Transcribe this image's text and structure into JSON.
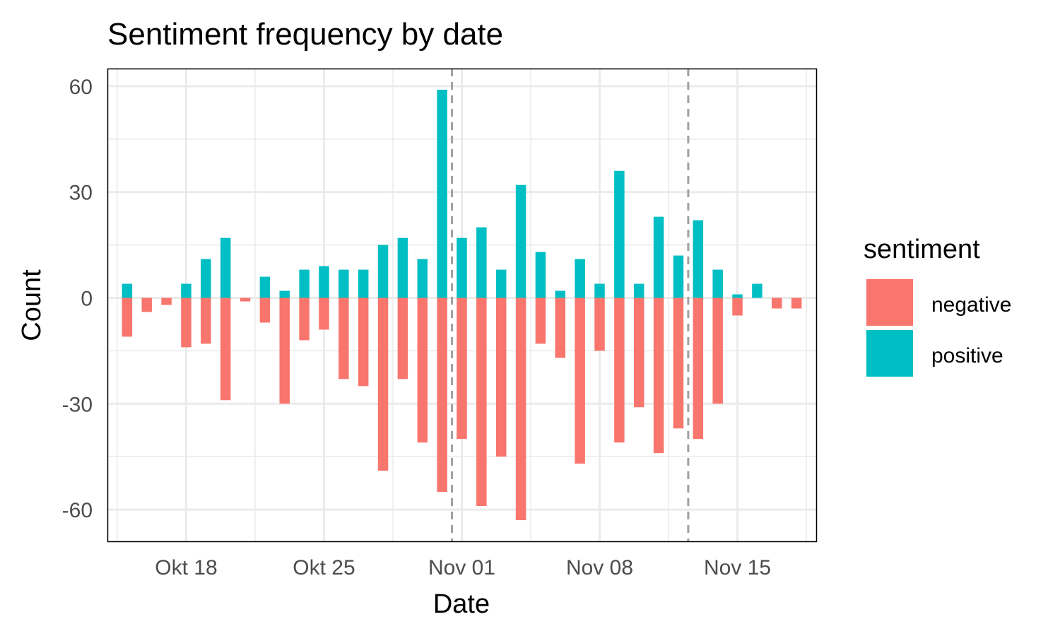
{
  "chart_data": {
    "type": "bar",
    "title": "Sentiment frequency by date",
    "xlabel": "Date",
    "ylabel": "Count",
    "x_ticks": [
      {
        "date": "2020-10-18",
        "label": "Okt 18"
      },
      {
        "date": "2020-10-25",
        "label": "Okt 25"
      },
      {
        "date": "2020-11-01",
        "label": "Nov 01"
      },
      {
        "date": "2020-11-08",
        "label": "Nov 08"
      },
      {
        "date": "2020-11-15",
        "label": "Nov 15"
      }
    ],
    "xlim": [
      "2020-10-14",
      "2020-11-19"
    ],
    "y_ticks": [
      60,
      30,
      0,
      -30,
      -60
    ],
    "ylim": [
      -69,
      65
    ],
    "grid": true,
    "legend": {
      "title": "sentiment",
      "position": "right",
      "entries": [
        {
          "name": "negative",
          "color": "#F8766D"
        },
        {
          "name": "positive",
          "color": "#00BFC4"
        }
      ]
    },
    "vlines": {
      "dates": [
        "2020-10-31T12:00",
        "2020-11-12T12:00"
      ],
      "style": "dashed",
      "color": "#A0A0A0"
    },
    "x": [
      "2020-10-15",
      "2020-10-16",
      "2020-10-17",
      "2020-10-18",
      "2020-10-19",
      "2020-10-20",
      "2020-10-21",
      "2020-10-22",
      "2020-10-23",
      "2020-10-24",
      "2020-10-25",
      "2020-10-26",
      "2020-10-27",
      "2020-10-28",
      "2020-10-29",
      "2020-10-30",
      "2020-10-31",
      "2020-11-01",
      "2020-11-02",
      "2020-11-03",
      "2020-11-04",
      "2020-11-05",
      "2020-11-06",
      "2020-11-07",
      "2020-11-08",
      "2020-11-09",
      "2020-11-10",
      "2020-11-11",
      "2020-11-12",
      "2020-11-13",
      "2020-11-14",
      "2020-11-15",
      "2020-11-16",
      "2020-11-17",
      "2020-11-18",
      "2020-11-19"
    ],
    "series": [
      {
        "name": "negative",
        "color": "#F8766D",
        "values": [
          -11,
          -4,
          -2,
          -14,
          -13,
          -29,
          -1,
          -7,
          -30,
          -12,
          -9,
          -23,
          -25,
          -49,
          -23,
          -41,
          -55,
          -40,
          -59,
          -45,
          -63,
          -13,
          -17,
          -47,
          -15,
          -41,
          -31,
          -44,
          -37,
          -40,
          -30,
          -5,
          0,
          -3,
          -3,
          0
        ]
      },
      {
        "name": "positive",
        "color": "#00BFC4",
        "values": [
          4,
          0,
          0,
          4,
          11,
          17,
          0,
          6,
          2,
          8,
          9,
          8,
          8,
          15,
          17,
          11,
          59,
          17,
          20,
          8,
          32,
          13,
          2,
          11,
          4,
          36,
          4,
          23,
          12,
          22,
          8,
          1,
          4,
          0,
          0,
          0
        ]
      }
    ]
  }
}
